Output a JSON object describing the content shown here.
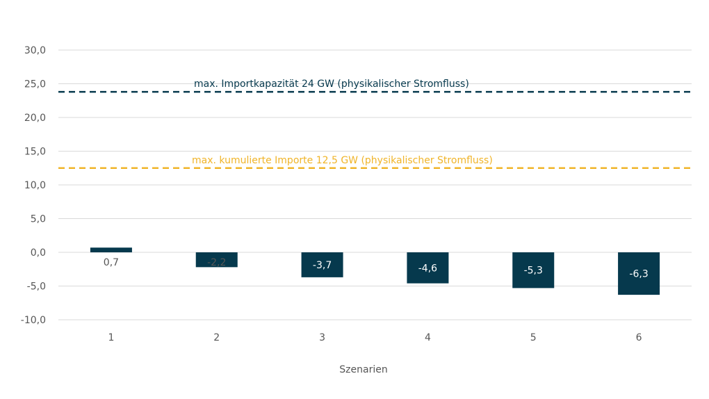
{
  "chart_data": {
    "type": "bar",
    "categories": [
      "1",
      "2",
      "3",
      "4",
      "5",
      "6"
    ],
    "values": [
      0.7,
      -2.2,
      -3.7,
      -4.6,
      -5.3,
      -6.3
    ],
    "value_labels": [
      "0,7",
      "-2,2",
      "-3,7",
      "-4,6",
      "-5,3",
      "-6,3"
    ],
    "xlabel": "Szenarien",
    "ylabel": "",
    "ylim": [
      -10,
      30
    ],
    "yticks": [
      30,
      25,
      20,
      15,
      10,
      5,
      0,
      -5,
      -10
    ],
    "ytick_labels": [
      "30,0",
      "25,0",
      "20,0",
      "15,0",
      "10,0",
      "5,0",
      "0,0",
      "-5,0",
      "-10,0"
    ],
    "grid": true,
    "bar_color": "#06394d",
    "reference_lines": [
      {
        "value": 23.8,
        "label": "max. Importkapazität 24 GW (physikalischer Stromfluss)",
        "color": "#06394d",
        "style": "dashed"
      },
      {
        "value": 12.5,
        "label": "max. kumulierte Importe 12,5 GW (physikalischer Stromfluss)",
        "color": "#f0b429",
        "style": "dashed"
      }
    ]
  }
}
